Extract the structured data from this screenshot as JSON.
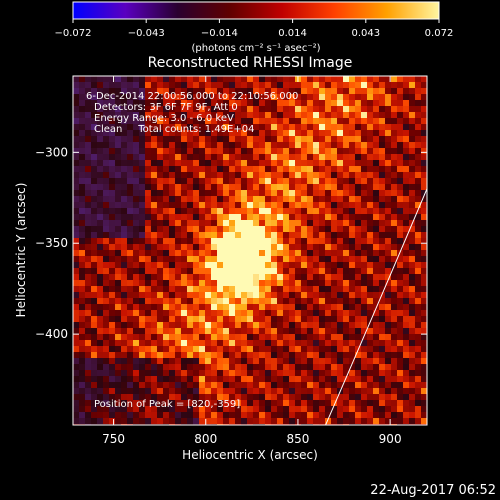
{
  "colorbar": {
    "ticks": [
      "−0.072",
      "−0.043",
      "−0.014",
      "0.014",
      "0.043",
      "0.072"
    ],
    "unit_label": "(photons cm⁻² s⁻¹ asec⁻²)",
    "colormap": [
      "#0000ff",
      "#5a00c0",
      "#2a0030",
      "#600000",
      "#c00000",
      "#ff4000",
      "#ffa000",
      "#fff5a0"
    ]
  },
  "plot": {
    "title": "Reconstructed RHESSI Image",
    "info_lines": [
      "6-Dec-2014 22:00:56.000 to 22:10:56.000",
      "Detectors: 3F 6F 7F 9F, Att 0",
      "Energy Range: 3.0 - 6.0 keV",
      "Clean     Total counts: 1.49E+04"
    ],
    "peak_label": "Position of Peak = [820,-359]"
  },
  "footer": {
    "timestamp": "22-Aug-2017 06:52"
  },
  "chart_data": {
    "type": "heatmap",
    "title": "Reconstructed RHESSI Image",
    "xlabel": "Heliocentric X (arcsec)",
    "ylabel": "Heliocentric Y (arcsec)",
    "xlim": [
      728,
      920
    ],
    "ylim": [
      -450,
      -258
    ],
    "x_ticks": [
      750,
      800,
      850,
      900
    ],
    "y_ticks": [
      -300,
      -350,
      -400
    ],
    "x_tick_labels": [
      "750",
      "800",
      "850",
      "900"
    ],
    "y_tick_labels": [
      "−300",
      "−350",
      "−400"
    ],
    "color_range": [
      -0.072,
      0.072
    ],
    "peak_position": [
      820,
      -359
    ],
    "limb_curve": [
      [
        865,
        -450
      ],
      [
        895,
        -380
      ],
      [
        920,
        -320
      ]
    ]
  }
}
